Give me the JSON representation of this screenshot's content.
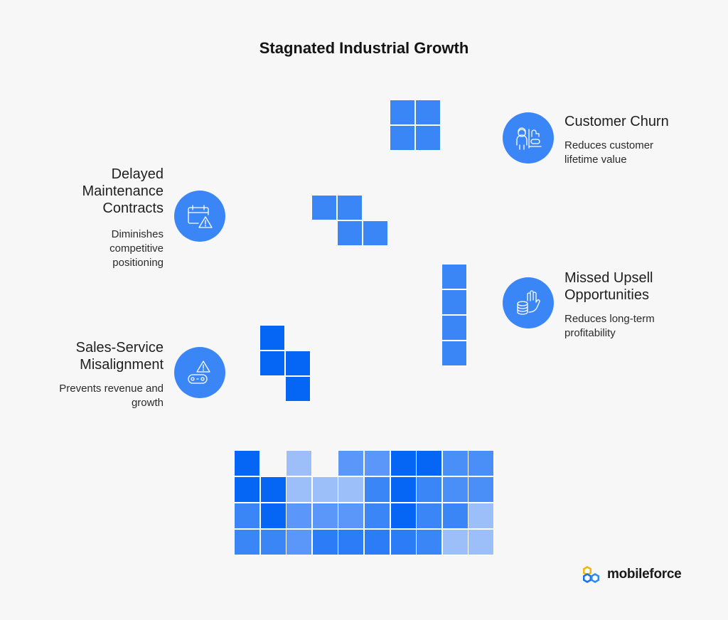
{
  "title": "Stagnated Industrial Growth",
  "items": {
    "churn": {
      "title": "Customer Churn",
      "desc": [
        "Reduces customer",
        "lifetime value"
      ],
      "icon": "customer-service-icon"
    },
    "delayed": {
      "title": [
        "Delayed",
        "Maintenance",
        "Contracts"
      ],
      "desc": [
        "Diminishes",
        "competitive",
        "positioning"
      ],
      "icon": "calendar-warning-icon"
    },
    "upsell": {
      "title": [
        "Missed Upsell",
        "Opportunities"
      ],
      "desc": [
        "Reduces long-term",
        "profitability"
      ],
      "icon": "hand-coins-icon"
    },
    "sales": {
      "title": [
        "Sales-Service",
        "Misalignment"
      ],
      "desc": [
        "Prevents revenue and",
        "growth"
      ],
      "icon": "conveyor-warning-icon"
    }
  },
  "colors": {
    "accent": "#3b86f7",
    "dark": "#0566f5",
    "mid": "#4a8ef7",
    "light": "#9cbff9",
    "background": "#f7f7f7"
  },
  "grid_colors": [
    [
      "#0566f5",
      null,
      "#9cbff9",
      null,
      "#5a97f8",
      "#5a97f8",
      "#0566f5",
      "#0566f5",
      "#4a8ef7",
      "#4a8ef7"
    ],
    [
      "#0566f5",
      "#0566f5",
      "#9cbff9",
      "#9cbff9",
      "#9cbff9",
      "#3b86f7",
      "#0566f5",
      "#3b86f7",
      "#4a8ef7",
      "#4a8ef7"
    ],
    [
      "#3b86f7",
      "#0566f5",
      "#5a97f8",
      "#5a97f8",
      "#5a97f8",
      "#3b86f7",
      "#0566f5",
      "#3b86f7",
      "#3b86f7",
      "#9cbff9"
    ],
    [
      "#3b86f7",
      "#3b86f7",
      "#5a97f8",
      "#2b7cf6",
      "#2b7cf6",
      "#2b7cf6",
      "#2b7cf6",
      "#3b86f7",
      "#9cbff9",
      "#9cbff9"
    ]
  ],
  "brand": {
    "name": "mobileforce"
  }
}
